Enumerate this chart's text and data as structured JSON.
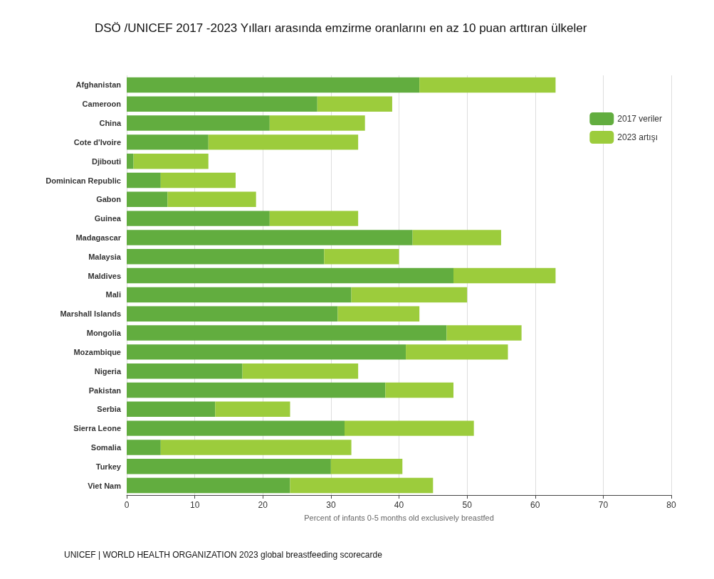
{
  "chart_data": {
    "type": "bar",
    "orientation": "horizontal",
    "stacked": true,
    "title": "DSÖ /UNICEF 2017 -2023 Yılları arasında emzirme oranlarını en az 10 puan arttıran ülkeler",
    "xlabel": "Percent of infants 0-5 months old exclusively breastfed",
    "categories": [
      "Afghanistan",
      "Cameroon",
      "China",
      "Cote d'Ivoire",
      "Djibouti",
      "Dominican Republic",
      "Gabon",
      "Guinea",
      "Madagascar",
      "Malaysia",
      "Maldives",
      "Mali",
      "Marshall Islands",
      "Mongolia",
      "Mozambique",
      "Nigeria",
      "Pakistan",
      "Serbia",
      "Sierra Leone",
      "Somalia",
      "Turkey",
      "Viet Nam"
    ],
    "series": [
      {
        "name": "2017 veriler",
        "color": "#62ad3f",
        "values": [
          43,
          28,
          21,
          12,
          1,
          5,
          6,
          21,
          42,
          29,
          48,
          33,
          31,
          47,
          41,
          17,
          38,
          13,
          32,
          5,
          30,
          24
        ]
      },
      {
        "name": "2023 artışı",
        "color": "#9ccc3c",
        "values": [
          20,
          11,
          14,
          22,
          11,
          11,
          13,
          13,
          13,
          11,
          15,
          17,
          12,
          11,
          15,
          17,
          10,
          11,
          19,
          28,
          10.5,
          21
        ]
      }
    ],
    "xlim": [
      0,
      80
    ],
    "xticks": [
      0,
      10,
      20,
      30,
      40,
      50,
      60,
      70,
      80
    ],
    "grid": "x",
    "legend": "top right",
    "annotations": [
      "UNICEF | WORLD HEALTH ORGANIZATION 2023 global breastfeeding scorecarde"
    ]
  }
}
